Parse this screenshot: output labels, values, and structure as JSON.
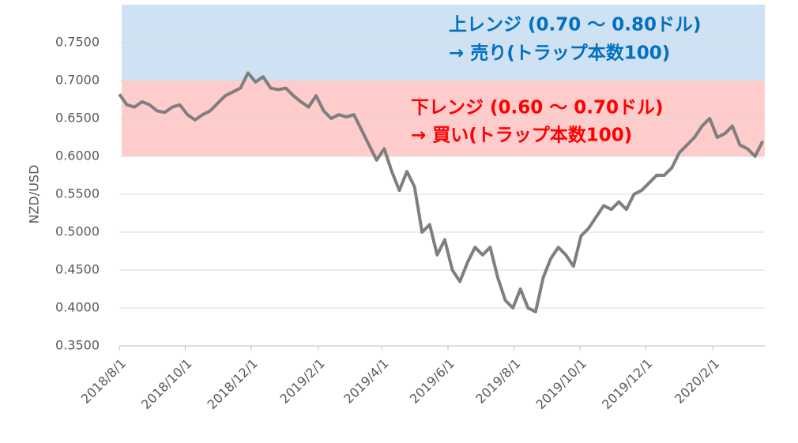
{
  "chart_data": {
    "type": "line",
    "y_label": "NZD/USD",
    "x": [
      "2018-08-01",
      "2018-08-08",
      "2018-08-15",
      "2018-08-22",
      "2018-08-29",
      "2018-09-05",
      "2018-09-12",
      "2018-09-19",
      "2018-09-26",
      "2018-10-03",
      "2018-10-10",
      "2018-10-17",
      "2018-10-24",
      "2018-10-31",
      "2018-11-07",
      "2018-11-14",
      "2018-11-21",
      "2018-11-28",
      "2018-12-05",
      "2018-12-12",
      "2018-12-19",
      "2018-12-26",
      "2019-01-02",
      "2019-01-09",
      "2019-01-16",
      "2019-01-23",
      "2019-01-30",
      "2019-02-06",
      "2019-02-13",
      "2019-02-20",
      "2019-02-27",
      "2019-03-06",
      "2019-03-13",
      "2019-03-20",
      "2019-03-27",
      "2019-04-03",
      "2019-04-10",
      "2019-04-17",
      "2019-04-24",
      "2019-05-01",
      "2019-05-08",
      "2019-05-15",
      "2019-05-22",
      "2019-05-29",
      "2019-06-05",
      "2019-06-12",
      "2019-06-19",
      "2019-06-26",
      "2019-07-03",
      "2019-07-10",
      "2019-07-17",
      "2019-07-24",
      "2019-07-31",
      "2019-08-07",
      "2019-08-14",
      "2019-08-21",
      "2019-08-28",
      "2019-09-04",
      "2019-09-11",
      "2019-09-18",
      "2019-09-25",
      "2019-10-02",
      "2019-10-09",
      "2019-10-16",
      "2019-10-23",
      "2019-10-30",
      "2019-11-06",
      "2019-11-13",
      "2019-11-20",
      "2019-11-27",
      "2019-12-04",
      "2019-12-11",
      "2019-12-18",
      "2019-12-25",
      "2020-01-01",
      "2020-01-08",
      "2020-01-15",
      "2020-01-22",
      "2020-01-29",
      "2020-02-05",
      "2020-02-12",
      "2020-02-19",
      "2020-02-26",
      "2020-03-04",
      "2020-03-11",
      "2020-03-18"
    ],
    "values": [
      0.682,
      0.668,
      0.665,
      0.672,
      0.668,
      0.66,
      0.658,
      0.665,
      0.668,
      0.655,
      0.648,
      0.655,
      0.66,
      0.67,
      0.68,
      0.685,
      0.69,
      0.71,
      0.698,
      0.705,
      0.69,
      0.688,
      0.69,
      0.68,
      0.672,
      0.665,
      0.68,
      0.66,
      0.65,
      0.655,
      0.652,
      0.655,
      0.635,
      0.615,
      0.595,
      0.61,
      0.58,
      0.555,
      0.58,
      0.56,
      0.5,
      0.51,
      0.47,
      0.49,
      0.45,
      0.435,
      0.46,
      0.48,
      0.47,
      0.48,
      0.44,
      0.41,
      0.4,
      0.425,
      0.4,
      0.395,
      0.44,
      0.465,
      0.48,
      0.47,
      0.455,
      0.495,
      0.505,
      0.52,
      0.535,
      0.53,
      0.54,
      0.53,
      0.55,
      0.555,
      0.565,
      0.575,
      0.575,
      0.585,
      0.605,
      0.615,
      0.625,
      0.64,
      0.65,
      0.625,
      0.63,
      0.64,
      0.615,
      0.61,
      0.6,
      0.62
    ],
    "color": "#7f7f7f",
    "xlim": [
      "2018-08-01",
      "2020-03-20"
    ],
    "xticks": [
      {
        "value": "2018-08-01",
        "label": "2018/8/1"
      },
      {
        "value": "2018-10-01",
        "label": "2018/10/1"
      },
      {
        "value": "2018-12-01",
        "label": "2018/12/1"
      },
      {
        "value": "2019-02-01",
        "label": "2019/2/1"
      },
      {
        "value": "2019-04-01",
        "label": "2019/4/1"
      },
      {
        "value": "2019-06-01",
        "label": "2019/6/1"
      },
      {
        "value": "2019-08-01",
        "label": "2019/8/1"
      },
      {
        "value": "2019-10-01",
        "label": "2019/10/1"
      },
      {
        "value": "2019-12-01",
        "label": "2019/12/1"
      },
      {
        "value": "2020-02-01",
        "label": "2020/2/1"
      }
    ],
    "ylim": [
      0.35,
      0.8
    ],
    "yticks": [
      {
        "value": 0.35,
        "label": "0.3500"
      },
      {
        "value": 0.4,
        "label": "0.4000"
      },
      {
        "value": 0.45,
        "label": "0.4500"
      },
      {
        "value": 0.5,
        "label": "0.5000"
      },
      {
        "value": 0.55,
        "label": "0.5500"
      },
      {
        "value": 0.6,
        "label": "0.6000"
      },
      {
        "value": 0.65,
        "label": "0.6500"
      },
      {
        "value": 0.7,
        "label": "0.7000"
      },
      {
        "value": 0.75,
        "label": "0.7500"
      }
    ],
    "grid": true,
    "bands": [
      {
        "from": 0.7,
        "to": 0.8,
        "color": "#cfe2f3",
        "text_color": "#0070c0",
        "lines": [
          "上レンジ (0.70 ～ 0.80ドル)",
          "→ 売り(トラップ本数100)"
        ]
      },
      {
        "from": 0.6,
        "to": 0.7,
        "color": "#ffcccc",
        "text_color": "#ff0000",
        "lines": [
          "下レンジ (0.60 ～ 0.70ドル)",
          "→ 買い(トラップ本数100)"
        ]
      }
    ]
  }
}
